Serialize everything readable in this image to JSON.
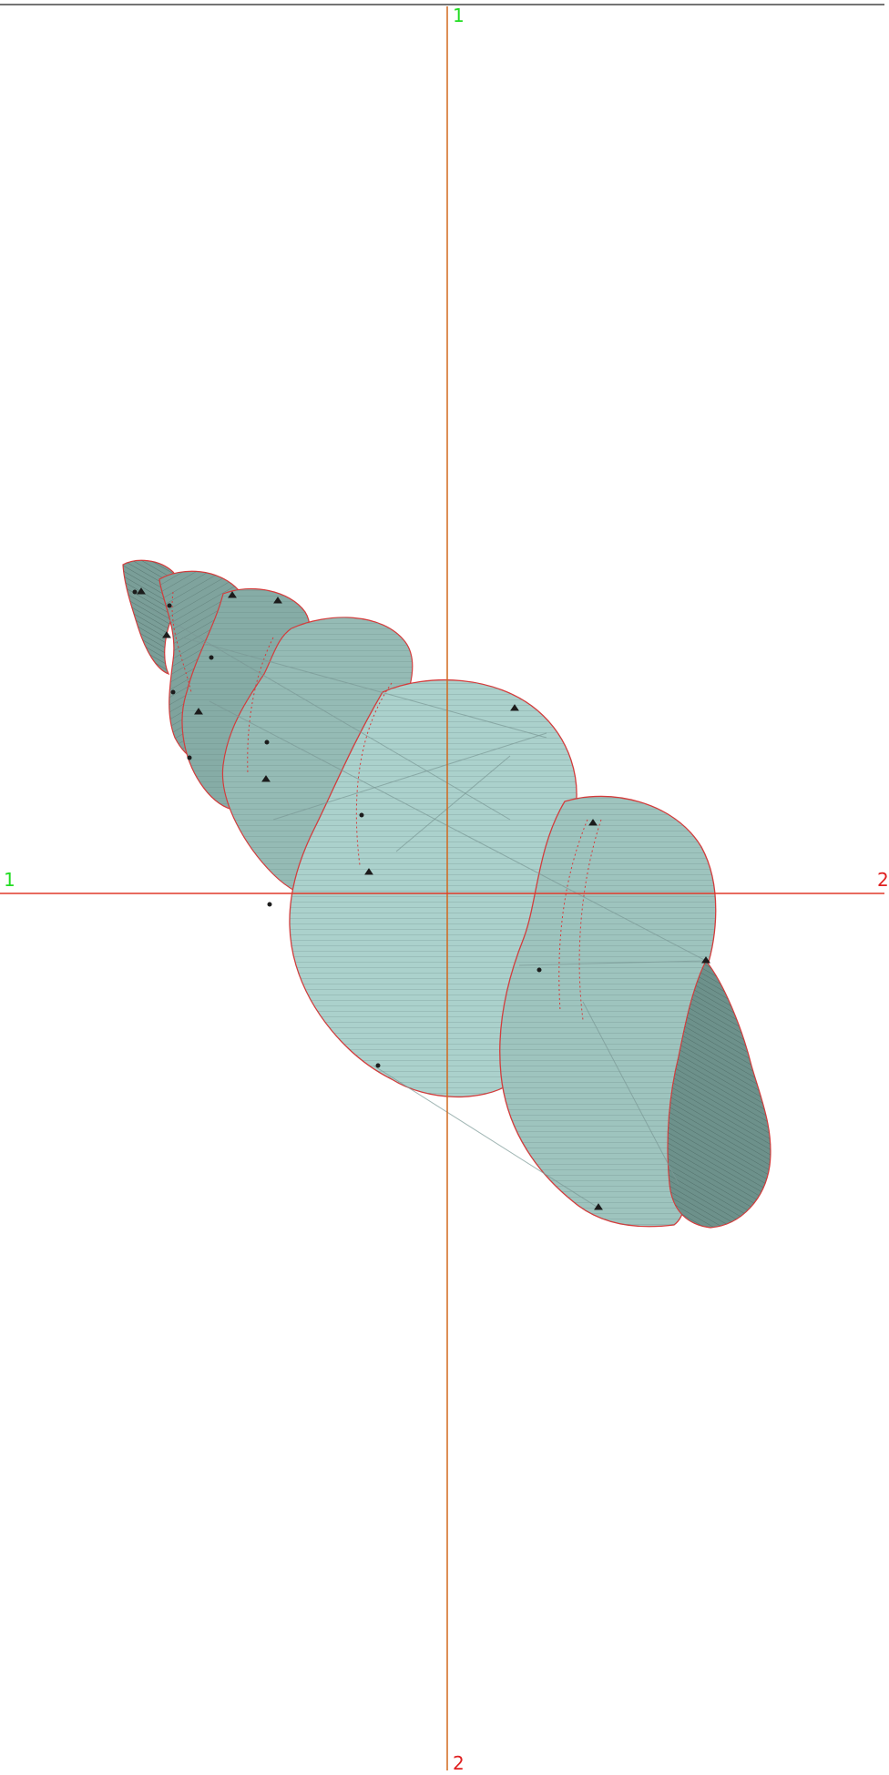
{
  "viewport": {
    "axis_labels": {
      "top": "1",
      "left": "1",
      "right": "2",
      "bottom": "2"
    }
  },
  "colors": {
    "background": "#ffffff",
    "vertical_axis": "#d2691e",
    "horizontal_axis": "#e03a2a",
    "label_green": "#22dd22",
    "label_red": "#e02020",
    "shell_light": "#a9cfcb",
    "shell_mid": "#8fb5b0",
    "shell_dark": "#6c8f89",
    "outline": "#d43c3c",
    "hatch": "#5c7d78"
  },
  "icons": {
    "object": "shell-model-icon",
    "markers": "vertex-marker-icon"
  }
}
